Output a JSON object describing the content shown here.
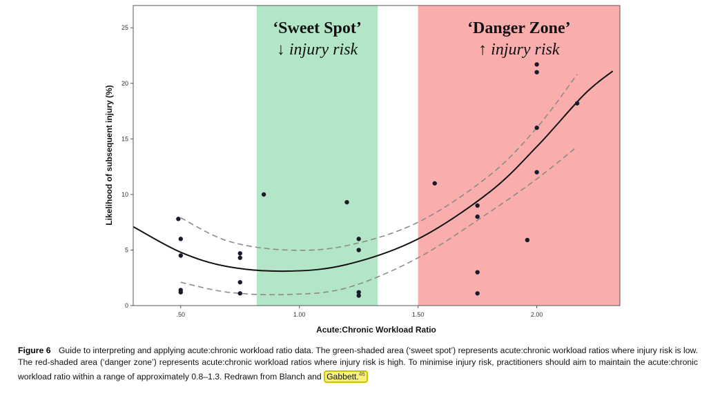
{
  "chart_data": {
    "type": "scatter",
    "xlabel": "Acute:Chronic Workload Ratio",
    "ylabel": "Likelihood of subsequent injury (%)",
    "xlim": [
      0.3,
      2.35
    ],
    "ylim": [
      0,
      27
    ],
    "x_ticks": [
      0.5,
      1.0,
      1.5,
      2.0
    ],
    "x_tick_labels": [
      ".50",
      "1.00",
      "1.50",
      "2.00"
    ],
    "y_ticks": [
      0,
      5,
      10,
      15,
      20,
      25
    ],
    "y_tick_labels": [
      "0",
      "5",
      "10",
      "15",
      "20",
      "25"
    ],
    "zones": [
      {
        "x0": 0.82,
        "x1": 1.33,
        "color": "#b3e6c6",
        "title": "‘Sweet Spot’",
        "subtitle": "↓ injury risk"
      },
      {
        "x0": 1.5,
        "x1": 2.35,
        "color": "#f9adad",
        "title": "‘Danger Zone’",
        "subtitle": "↑ injury risk"
      }
    ],
    "points": [
      {
        "x": 0.49,
        "y": 7.8
      },
      {
        "x": 0.5,
        "y": 6.0
      },
      {
        "x": 0.5,
        "y": 4.5
      },
      {
        "x": 0.5,
        "y": 1.4
      },
      {
        "x": 0.5,
        "y": 1.2
      },
      {
        "x": 0.75,
        "y": 4.7
      },
      {
        "x": 0.75,
        "y": 4.3
      },
      {
        "x": 0.75,
        "y": 2.1
      },
      {
        "x": 0.75,
        "y": 1.1
      },
      {
        "x": 0.85,
        "y": 10.0
      },
      {
        "x": 1.2,
        "y": 9.3
      },
      {
        "x": 1.25,
        "y": 6.0
      },
      {
        "x": 1.25,
        "y": 5.0
      },
      {
        "x": 1.25,
        "y": 1.2
      },
      {
        "x": 1.25,
        "y": 0.9
      },
      {
        "x": 1.57,
        "y": 11.0
      },
      {
        "x": 1.75,
        "y": 9.0
      },
      {
        "x": 1.75,
        "y": 8.0
      },
      {
        "x": 1.75,
        "y": 3.0
      },
      {
        "x": 1.75,
        "y": 1.1
      },
      {
        "x": 1.96,
        "y": 5.9
      },
      {
        "x": 2.0,
        "y": 21.7
      },
      {
        "x": 2.0,
        "y": 21.0
      },
      {
        "x": 2.0,
        "y": 16.0
      },
      {
        "x": 2.0,
        "y": 12.0
      },
      {
        "x": 2.17,
        "y": 18.2
      }
    ],
    "fit_line": {
      "x": [
        0.3,
        0.5,
        0.7,
        0.95,
        1.2,
        1.5,
        1.8,
        2.0,
        2.2,
        2.32
      ],
      "y": [
        7.1,
        4.8,
        3.5,
        3.1,
        3.7,
        6.0,
        10.2,
        14.3,
        19.0,
        21.1
      ]
    },
    "ci_upper": {
      "x": [
        0.5,
        0.7,
        0.95,
        1.2,
        1.5,
        1.8,
        2.0,
        2.17
      ],
      "y": [
        7.9,
        5.8,
        5.0,
        5.4,
        7.5,
        11.7,
        16.0,
        20.8
      ]
    },
    "ci_lower": {
      "x": [
        0.5,
        0.7,
        0.95,
        1.2,
        1.5,
        1.8,
        2.0,
        2.17
      ],
      "y": [
        2.1,
        1.2,
        1.0,
        1.6,
        4.3,
        8.4,
        11.4,
        14.3
      ]
    },
    "grid": false
  },
  "caption": {
    "label": "Figure 6",
    "text": "Guide to interpreting and applying acute:chronic workload ratio data. The green-shaded area (‘sweet spot’) represents acute:chronic workload ratios where injury risk is low. The red-shaded area (‘danger zone’) represents acute:chronic workload ratios where injury risk is high. To minimise injury risk, practitioners should aim to maintain the acute:chronic workload ratio within a range of approximately 0.8–1.3. Redrawn from Blanch and",
    "highlighted_ref": "Gabbett.",
    "ref_number": "46",
    "highlight_color": "#f6f27a"
  }
}
